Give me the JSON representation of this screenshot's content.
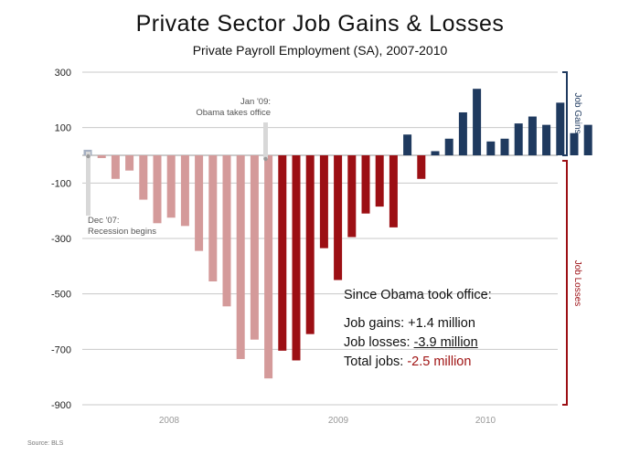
{
  "chart_data": {
    "type": "bar",
    "title": "Private Sector Job Gains & Losses",
    "subtitle": "Private Payroll Employment (SA), 2007-2010",
    "y_ticks": [
      300,
      100,
      -100,
      -300,
      -500,
      -700,
      -900
    ],
    "ylim": [
      -900,
      300
    ],
    "x_labels": [
      "2008",
      "2009",
      "2010"
    ],
    "side_labels": {
      "gains": "Job Gains",
      "losses": "Job Losses"
    },
    "annotations": {
      "dec07": [
        "Dec '07:",
        "Recession begins"
      ],
      "jan09": [
        "Jan '09:",
        "Obama takes office"
      ]
    },
    "series": [
      {
        "values": [
          20
        ]
      },
      {
        "values": [
          -10,
          -85,
          -55,
          -160,
          -245,
          -225,
          -255,
          -345,
          -455,
          -545,
          -735,
          -665,
          -805
        ]
      },
      {
        "values": [
          -705,
          -740,
          -645,
          -335,
          -450,
          -295,
          -210,
          -185,
          -260,
          75,
          -85,
          15,
          60,
          155,
          240,
          50,
          60,
          115,
          140,
          110,
          190,
          80,
          110
        ]
      }
    ],
    "colors": {
      "precursor": "#a6b0c2",
      "pre": "#d49a9a",
      "loss": "#9c0f14",
      "gain": "#1f3a5f",
      "grid": "#c8c8c8"
    }
  },
  "summary": {
    "heading": "Since Obama took office:",
    "gains_label": "Job gains: ",
    "gains_value": "+1.4 million",
    "losses_label": "Job losses: ",
    "losses_value": "-3.9 million",
    "total_label": "Total jobs: ",
    "total_value": "-2.5 million"
  },
  "source": "Source: BLS"
}
